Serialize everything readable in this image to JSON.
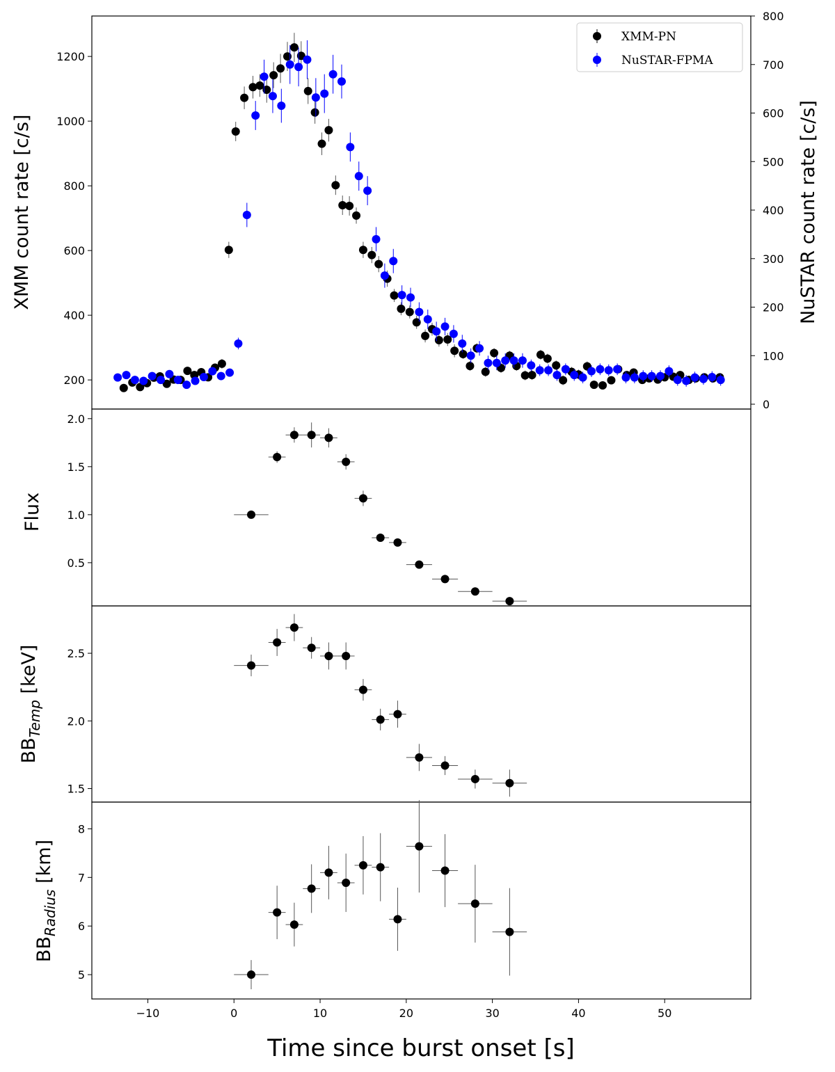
{
  "figure": {
    "xlabel": "Time since burst onset [s]"
  },
  "chart_data": [
    {
      "type": "scatter",
      "title": "",
      "xlabel": "",
      "ylabel": "XMM count rate [c/s]",
      "ylabel_right": "NuSTAR count rate [c/s]",
      "xlim": [
        -16.5,
        60
      ],
      "ylim": [
        110,
        1325
      ],
      "ylim_right": [
        -10,
        800
      ],
      "yticks": [
        200,
        400,
        600,
        800,
        1000,
        1200
      ],
      "yticks_right": [
        0,
        100,
        200,
        300,
        400,
        500,
        600,
        700,
        800
      ],
      "legend": {
        "placement": "top-right",
        "entries": [
          "XMM-PN",
          "NuSTAR-FPMA"
        ]
      },
      "series": [
        {
          "name": "XMM-PN",
          "axis": "left",
          "color": "#000000",
          "x": [
            -12.8,
            -11.8,
            -10.9,
            -10.1,
            -9.3,
            -8.6,
            -7.8,
            -7.0,
            -6.2,
            -5.4,
            -4.6,
            -3.8,
            -3.0,
            -2.2,
            -1.4,
            -0.6,
            0.2,
            1.2,
            2.2,
            3.0,
            3.8,
            4.6,
            5.4,
            6.2,
            7.0,
            7.8,
            8.6,
            9.4,
            10.2,
            11.0,
            11.8,
            12.6,
            13.4,
            14.2,
            15.0,
            16.0,
            16.8,
            17.8,
            18.6,
            19.4,
            20.4,
            21.2,
            22.2,
            23.0,
            23.8,
            24.8,
            25.6,
            26.6,
            27.4,
            28.2,
            29.2,
            30.2,
            31.0,
            32.0,
            32.8,
            33.8,
            34.6,
            35.6,
            36.4,
            37.4,
            38.2,
            39.2,
            40.0,
            41.0,
            41.8,
            42.8,
            43.8,
            44.6,
            45.6,
            46.4,
            47.4,
            48.2,
            49.2,
            50.0,
            51.0,
            51.8,
            52.8,
            53.6,
            54.6,
            55.6,
            56.4
          ],
          "y": [
            175,
            192,
            178,
            190,
            207,
            211,
            188,
            201,
            200,
            228,
            215,
            224,
            208,
            238,
            250,
            602,
            968,
            1072,
            1105,
            1110,
            1097,
            1142,
            1163,
            1200,
            1228,
            1202,
            1093,
            1027,
            930,
            972,
            802,
            740,
            738,
            708,
            602,
            586,
            558,
            513,
            461,
            420,
            410,
            378,
            336,
            357,
            323,
            325,
            290,
            280,
            243,
            298,
            225,
            283,
            237,
            275,
            243,
            214,
            215,
            278,
            266,
            245,
            199,
            225,
            217,
            242,
            185,
            183,
            199,
            233,
            215,
            223,
            200,
            205,
            201,
            208,
            210,
            215,
            200,
            205,
            208,
            205,
            208
          ],
          "yerr": [
            10,
            10,
            10,
            10,
            12,
            12,
            12,
            10,
            12,
            12,
            12,
            12,
            12,
            12,
            15,
            25,
            30,
            35,
            35,
            35,
            40,
            40,
            45,
            45,
            45,
            45,
            40,
            35,
            35,
            35,
            30,
            30,
            30,
            25,
            25,
            25,
            25,
            25,
            20,
            20,
            20,
            20,
            20,
            20,
            20,
            20,
            20,
            15,
            15,
            15,
            15,
            15,
            15,
            15,
            15,
            15,
            15,
            15,
            15,
            15,
            15,
            15,
            15,
            15,
            12,
            12,
            12,
            12,
            12,
            12,
            12,
            12,
            12,
            12,
            12,
            12,
            12,
            12,
            12,
            12,
            12
          ]
        },
        {
          "name": "NuSTAR-FPMA",
          "axis": "right",
          "color": "#0000ff",
          "x": [
            -13.5,
            -12.5,
            -11.5,
            -10.5,
            -9.5,
            -8.5,
            -7.5,
            -6.5,
            -5.5,
            -4.5,
            -3.5,
            -2.5,
            -1.5,
            -0.5,
            0.5,
            1.5,
            2.5,
            3.5,
            4.5,
            5.5,
            6.5,
            7.5,
            8.5,
            9.5,
            10.5,
            11.5,
            12.5,
            13.5,
            14.5,
            15.5,
            16.5,
            17.5,
            18.5,
            19.5,
            20.5,
            21.5,
            22.5,
            23.5,
            24.5,
            25.5,
            26.5,
            27.5,
            28.5,
            29.5,
            30.5,
            31.5,
            32.5,
            33.5,
            34.5,
            35.5,
            36.5,
            37.5,
            38.5,
            39.5,
            40.5,
            41.5,
            42.5,
            43.5,
            44.5,
            45.5,
            46.5,
            47.5,
            48.5,
            49.5,
            50.5,
            51.5,
            52.5,
            53.5,
            54.5,
            55.5,
            56.5
          ],
          "y": [
            55,
            60,
            50,
            48,
            58,
            50,
            62,
            50,
            40,
            48,
            56,
            68,
            58,
            65,
            125,
            390,
            595,
            675,
            635,
            615,
            700,
            695,
            710,
            632,
            640,
            680,
            665,
            530,
            470,
            440,
            340,
            265,
            295,
            225,
            220,
            190,
            175,
            150,
            160,
            145,
            125,
            100,
            115,
            85,
            85,
            90,
            90,
            90,
            80,
            70,
            70,
            60,
            72,
            60,
            55,
            68,
            72,
            70,
            72,
            55,
            55,
            58,
            58,
            58,
            68,
            50,
            48,
            55,
            52,
            56,
            50
          ],
          "yerr": [
            6,
            6,
            6,
            6,
            6,
            6,
            6,
            6,
            6,
            6,
            6,
            6,
            6,
            6,
            12,
            25,
            30,
            35,
            35,
            35,
            40,
            40,
            40,
            40,
            40,
            40,
            35,
            30,
            30,
            30,
            25,
            25,
            25,
            20,
            20,
            20,
            20,
            20,
            18,
            18,
            18,
            15,
            15,
            15,
            15,
            15,
            15,
            15,
            12,
            12,
            12,
            12,
            12,
            12,
            12,
            12,
            12,
            12,
            12,
            12,
            12,
            12,
            12,
            12,
            12,
            12,
            12,
            12,
            12,
            12,
            12
          ]
        }
      ]
    },
    {
      "type": "scatter",
      "ylabel": "Flux",
      "xlim": [
        -16.5,
        60
      ],
      "ylim": [
        0.05,
        2.1
      ],
      "yticks": [
        0.5,
        1.0,
        1.5,
        2.0
      ],
      "ytick_labels": [
        "0.5",
        "1.0",
        "1.5",
        "2.0"
      ],
      "x": [
        2,
        5,
        7,
        9,
        11,
        13,
        15,
        17,
        19,
        21.5,
        24.5,
        28,
        32
      ],
      "xerr": [
        2,
        1,
        1,
        1,
        1,
        1,
        1,
        1,
        1,
        1.5,
        1.5,
        2,
        2
      ],
      "y": [
        1.0,
        1.6,
        1.83,
        1.83,
        1.8,
        1.55,
        1.17,
        0.76,
        0.71,
        0.48,
        0.33,
        0.2,
        0.1
      ],
      "yerr": [
        0.02,
        0.06,
        0.08,
        0.13,
        0.1,
        0.08,
        0.08,
        0.04,
        0.04,
        0.03,
        0.03,
        0.02,
        0.02
      ]
    },
    {
      "type": "scatter",
      "ylabel_main": "BB",
      "ylabel_sub": "Temp",
      "ylabel_unit": " [keV]",
      "xlim": [
        -16.5,
        60
      ],
      "ylim": [
        1.4,
        2.85
      ],
      "yticks": [
        1.5,
        2.0,
        2.5
      ],
      "ytick_labels": [
        "1.5",
        "2.0",
        "2.5"
      ],
      "x": [
        2,
        5,
        7,
        9,
        11,
        13,
        15,
        17,
        19,
        21.5,
        24.5,
        28,
        32
      ],
      "xerr": [
        2,
        1,
        1,
        1,
        1,
        1,
        1,
        1,
        1,
        1.5,
        1.5,
        2,
        2
      ],
      "y": [
        2.41,
        2.58,
        2.69,
        2.54,
        2.48,
        2.48,
        2.23,
        2.01,
        2.05,
        1.73,
        1.67,
        1.57,
        1.54
      ],
      "yerr": [
        0.08,
        0.1,
        0.1,
        0.08,
        0.1,
        0.1,
        0.08,
        0.08,
        0.1,
        0.1,
        0.07,
        0.07,
        0.1
      ]
    },
    {
      "type": "scatter",
      "ylabel_main": "BB",
      "ylabel_sub": "Radius",
      "ylabel_unit": "  [km]",
      "xlim": [
        -16.5,
        60
      ],
      "ylim": [
        4.5,
        8.55
      ],
      "yticks": [
        5,
        6,
        7,
        8
      ],
      "ytick_labels": [
        "5",
        "6",
        "7",
        "8"
      ],
      "xticks": [
        -10,
        0,
        10,
        20,
        30,
        40,
        50
      ],
      "xtick_labels": [
        "−10",
        "0",
        "10",
        "20",
        "30",
        "40",
        "50"
      ],
      "x": [
        2,
        5,
        7,
        9,
        11,
        13,
        15,
        17,
        19,
        21.5,
        24.5,
        28,
        32
      ],
      "xerr": [
        2,
        1,
        1,
        1,
        1,
        1,
        1,
        1,
        1,
        1.5,
        1.5,
        2,
        2
      ],
      "y": [
        5.0,
        6.28,
        6.03,
        6.77,
        7.1,
        6.89,
        7.25,
        7.21,
        6.14,
        7.64,
        7.14,
        6.46,
        5.88
      ],
      "yerr": [
        0.3,
        0.55,
        0.45,
        0.5,
        0.55,
        0.6,
        0.6,
        0.7,
        0.65,
        0.95,
        0.75,
        0.8,
        0.9
      ]
    }
  ]
}
